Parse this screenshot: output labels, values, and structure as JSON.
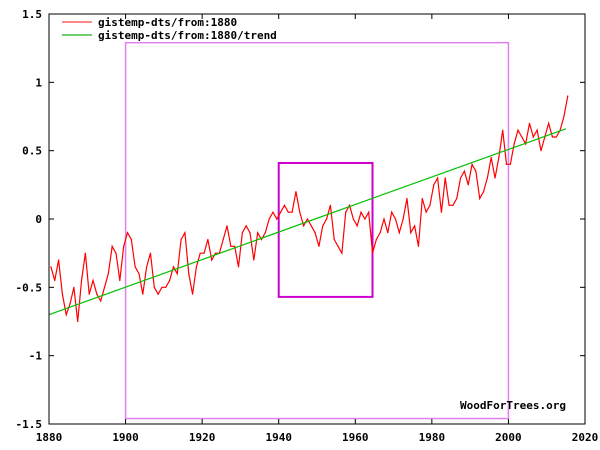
{
  "chart_data": {
    "type": "line",
    "title": "",
    "xlabel": "",
    "ylabel": "",
    "xlim": [
      1880,
      2020
    ],
    "ylim": [
      -1.5,
      1.5
    ],
    "x_ticks": [
      "1880",
      "1900",
      "1920",
      "1940",
      "1960",
      "1980",
      "2000",
      "2020"
    ],
    "y_ticks": [
      "1.5",
      "1",
      "0.5",
      "0",
      "-0.5",
      "-1",
      "-1.5"
    ],
    "grid": false,
    "legend_position": "top-left",
    "watermark": "WoodForTrees.org",
    "series": [
      {
        "name": "gistemp-dts/from:1880",
        "color": "#ff0000",
        "x_start": 1880,
        "x_step": 1,
        "values": [
          -0.35,
          -0.45,
          -0.3,
          -0.55,
          -0.7,
          -0.62,
          -0.5,
          -0.75,
          -0.45,
          -0.25,
          -0.55,
          -0.45,
          -0.55,
          -0.6,
          -0.5,
          -0.4,
          -0.2,
          -0.25,
          -0.45,
          -0.2,
          -0.1,
          -0.15,
          -0.35,
          -0.4,
          -0.55,
          -0.35,
          -0.25,
          -0.5,
          -0.55,
          -0.5,
          -0.5,
          -0.45,
          -0.35,
          -0.4,
          -0.15,
          -0.1,
          -0.4,
          -0.55,
          -0.35,
          -0.25,
          -0.25,
          -0.15,
          -0.3,
          -0.25,
          -0.25,
          -0.15,
          -0.05,
          -0.2,
          -0.2,
          -0.35,
          -0.1,
          -0.05,
          -0.1,
          -0.3,
          -0.1,
          -0.15,
          -0.1,
          0.0,
          0.05,
          0.0,
          0.05,
          0.1,
          0.05,
          0.05,
          0.2,
          0.05,
          -0.05,
          0.0,
          -0.05,
          -0.1,
          -0.2,
          -0.05,
          0.0,
          0.1,
          -0.15,
          -0.2,
          -0.25,
          0.05,
          0.1,
          0.0,
          -0.05,
          0.05,
          0.0,
          0.05,
          -0.25,
          -0.15,
          -0.1,
          0.0,
          -0.1,
          0.05,
          0.0,
          -0.1,
          0.0,
          0.15,
          -0.1,
          -0.05,
          -0.2,
          0.15,
          0.05,
          0.1,
          0.25,
          0.3,
          0.05,
          0.3,
          0.1,
          0.1,
          0.15,
          0.3,
          0.35,
          0.25,
          0.4,
          0.35,
          0.15,
          0.2,
          0.3,
          0.45,
          0.3,
          0.45,
          0.65,
          0.4,
          0.4,
          0.55,
          0.65,
          0.6,
          0.55,
          0.7,
          0.6,
          0.65,
          0.5,
          0.6,
          0.7,
          0.6,
          0.6,
          0.65,
          0.75,
          0.9
        ]
      },
      {
        "name": "gistemp-dts/from:1880/trend",
        "color": "#00c000",
        "x": [
          1880,
          2015
        ],
        "values": [
          -0.7,
          0.66
        ]
      }
    ],
    "annotations": [
      {
        "type": "rect",
        "x": [
          1900,
          2000
        ],
        "y": [
          -1.46,
          1.29
        ],
        "color": "#e080f0"
      },
      {
        "type": "rect",
        "x": [
          1940,
          1964.5
        ],
        "y": [
          -0.57,
          0.41
        ],
        "color": "#cc00cc"
      }
    ]
  }
}
